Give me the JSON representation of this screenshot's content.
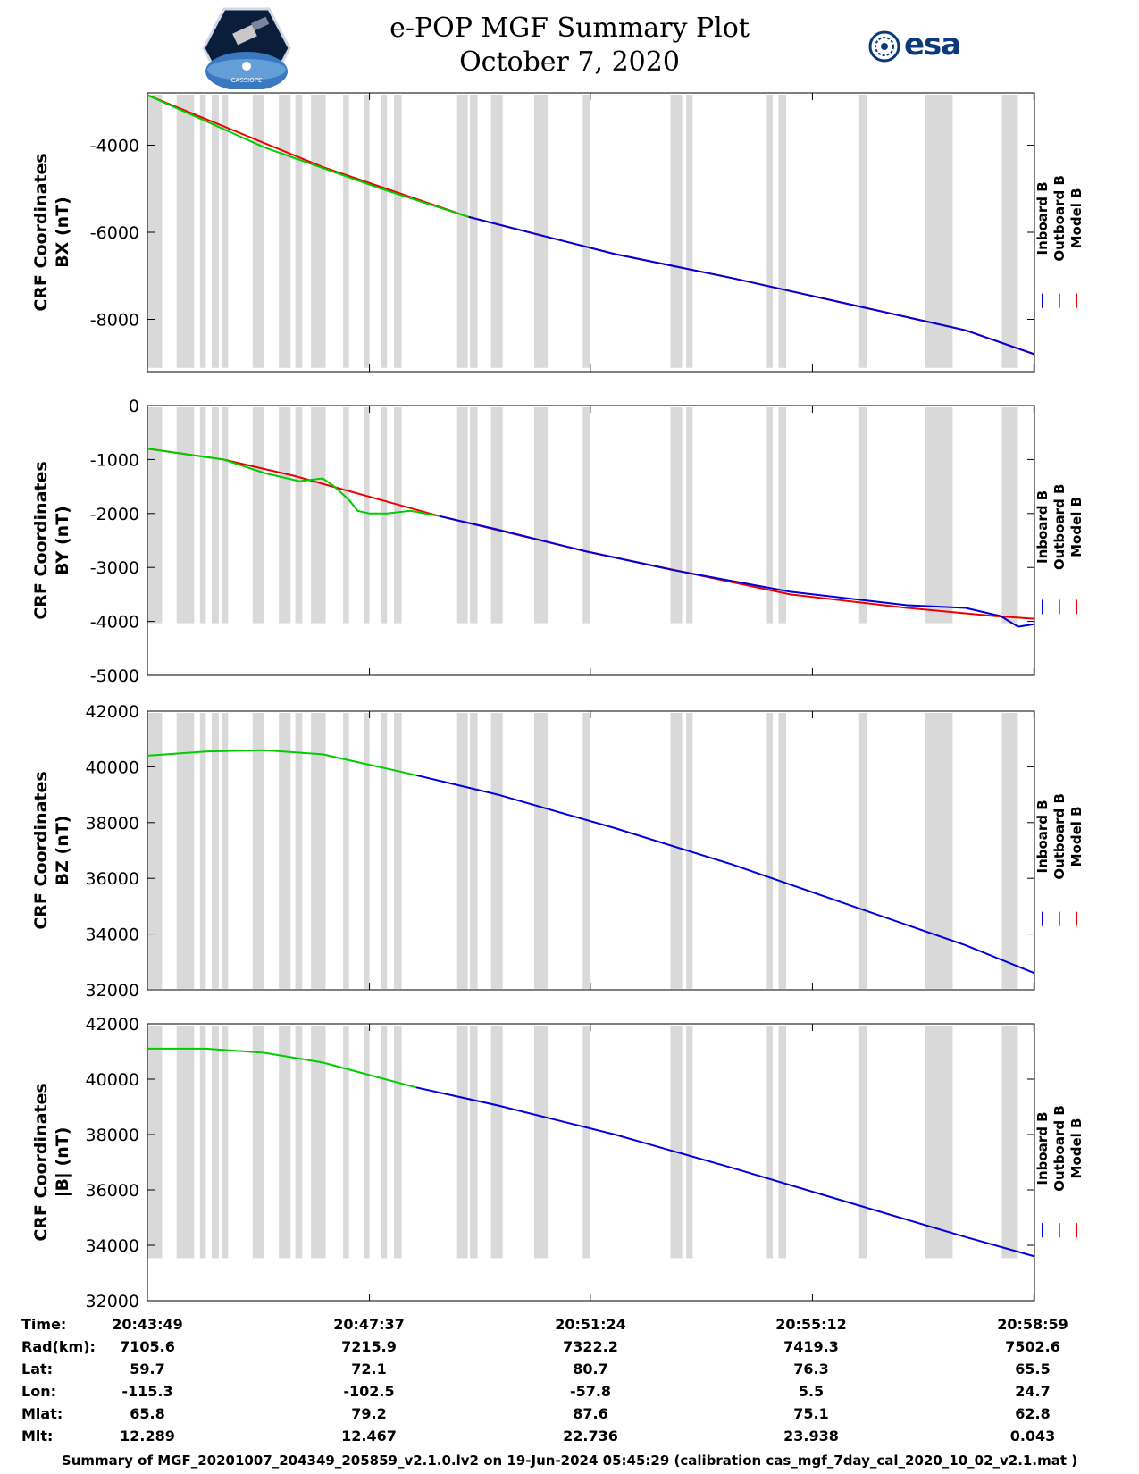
{
  "header": {
    "title_line1": "e-POP MGF Summary Plot",
    "title_line2": "October 7, 2020",
    "logo_left": "cassiope-mission-logo",
    "logo_left_caption": "CASSIOPE",
    "logo_right_text": "esa"
  },
  "colors": {
    "inboard": "#0000dd",
    "outboard": "#00cc00",
    "model": "#ee0000",
    "gap": "#d9d9d9"
  },
  "chart_data": [
    {
      "type": "line",
      "ylabel": "CRF Coordinates",
      "ylabel2": "BX (nT)",
      "ylim": [
        -9200,
        -2800
      ],
      "yticks": [
        -4000,
        -6000,
        -8000
      ],
      "tick_labels": [
        "-4000",
        "-6000",
        "-8000"
      ],
      "legend": [
        "Inboard B",
        "Outboard B",
        "Model B"
      ],
      "series": [
        {
          "name": "Outboard B",
          "x": [
            0,
            2.0,
            4.0,
            5.5
          ],
          "values": [
            -2850,
            -4050,
            -5000,
            -5650
          ]
        },
        {
          "name": "Inboard B",
          "x": [
            5.5,
            8.0,
            10.0,
            12.0,
            14.0,
            15.18
          ],
          "values": [
            -5650,
            -6500,
            -7050,
            -7650,
            -8250,
            -8800
          ]
        },
        {
          "name": "Model B",
          "x": [
            0,
            3.0,
            5.5,
            8.0,
            10.0,
            12.0,
            14.0,
            15.18
          ],
          "values": [
            -2850,
            -4500,
            -5650,
            -6500,
            -7050,
            -7650,
            -8250,
            -8800
          ]
        }
      ]
    },
    {
      "type": "line",
      "ylabel": "CRF Coordinates",
      "ylabel2": "BY (nT)",
      "ylim": [
        -5000,
        0
      ],
      "yticks": [
        0,
        -1000,
        -2000,
        -3000,
        -4000,
        -5000
      ],
      "tick_labels": [
        "0",
        "-1000",
        "-2000",
        "-3000",
        "-4000",
        "-5000"
      ],
      "legend": [
        "Inboard B",
        "Outboard B",
        "Model B"
      ],
      "series": [
        {
          "name": "Outboard B",
          "x": [
            0,
            1.3,
            2.0,
            2.6,
            3.0,
            3.2,
            3.45,
            3.6,
            3.8,
            4.1,
            4.5,
            5.0
          ],
          "values": [
            -800,
            -1000,
            -1250,
            -1400,
            -1350,
            -1500,
            -1750,
            -1950,
            -2000,
            -2000,
            -1950,
            -2050
          ]
        },
        {
          "name": "Inboard B",
          "x": [
            5.0,
            6.0,
            7.5,
            9.0,
            11.0,
            13.0,
            14.0,
            14.6,
            14.9,
            15.18
          ],
          "values": [
            -2050,
            -2300,
            -2700,
            -3050,
            -3450,
            -3700,
            -3750,
            -3900,
            -4100,
            -4050
          ]
        },
        {
          "name": "Model B",
          "x": [
            0,
            1.3,
            2.5,
            4.0,
            5.0,
            7.5,
            11.0,
            13.0,
            14.5,
            15.18
          ],
          "values": [
            -800,
            -1000,
            -1300,
            -1750,
            -2050,
            -2700,
            -3500,
            -3750,
            -3900,
            -3950
          ]
        }
      ]
    },
    {
      "type": "line",
      "ylabel": "CRF Coordinates",
      "ylabel2": "BZ (nT)",
      "ylim": [
        32000,
        42000
      ],
      "yticks": [
        42000,
        40000,
        38000,
        36000,
        34000,
        32000
      ],
      "tick_labels": [
        "42000",
        "40000",
        "38000",
        "36000",
        "34000",
        "32000"
      ],
      "legend": [
        "Inboard B",
        "Outboard B",
        "Model B"
      ],
      "series": [
        {
          "name": "Outboard B",
          "x": [
            0,
            1.0,
            2.0,
            3.0,
            4.6
          ],
          "values": [
            40400,
            40550,
            40600,
            40450,
            39700
          ]
        },
        {
          "name": "Inboard B",
          "x": [
            4.6,
            6.0,
            8.0,
            10.0,
            12.0,
            14.0,
            15.18
          ],
          "values": [
            39700,
            39000,
            37800,
            36500,
            35050,
            33600,
            32600
          ]
        }
      ]
    },
    {
      "type": "line",
      "ylabel": "CRF Coordinates",
      "ylabel2": "|B| (nT)",
      "ylim": [
        32000,
        42000
      ],
      "yticks": [
        42000,
        40000,
        38000,
        36000,
        34000,
        32000
      ],
      "tick_labels": [
        "42000",
        "40000",
        "38000",
        "36000",
        "34000",
        "32000"
      ],
      "legend": [
        "Inboard B",
        "Outboard B",
        "Model B"
      ],
      "series": [
        {
          "name": "Outboard B",
          "x": [
            0,
            1.0,
            2.0,
            3.0,
            4.6
          ],
          "values": [
            41100,
            41100,
            40950,
            40600,
            39700
          ]
        },
        {
          "name": "Inboard B",
          "x": [
            4.6,
            6.0,
            8.0,
            10.0,
            12.0,
            14.0,
            15.18
          ],
          "values": [
            39700,
            39050,
            38000,
            36800,
            35550,
            34300,
            33600
          ]
        }
      ]
    }
  ],
  "gap_intervals_minutes": [
    [
      0,
      0.25
    ],
    [
      0.5,
      0.8
    ],
    [
      0.9,
      1.0
    ],
    [
      1.1,
      1.22
    ],
    [
      1.28,
      1.38
    ],
    [
      1.8,
      2.0
    ],
    [
      2.25,
      2.45
    ],
    [
      2.53,
      2.65
    ],
    [
      2.8,
      3.05
    ],
    [
      3.35,
      3.45
    ],
    [
      3.7,
      3.8
    ],
    [
      4.0,
      4.1
    ],
    [
      4.22,
      4.35
    ],
    [
      5.3,
      5.48
    ],
    [
      5.52,
      5.65
    ],
    [
      5.88,
      6.08
    ],
    [
      6.62,
      6.85
    ],
    [
      7.45,
      7.58
    ],
    [
      8.95,
      9.15
    ],
    [
      9.22,
      9.33
    ],
    [
      10.6,
      10.7
    ],
    [
      10.8,
      10.93
    ],
    [
      12.18,
      12.32
    ],
    [
      13.3,
      13.78
    ],
    [
      14.62,
      14.88
    ]
  ],
  "gap_height_fraction": [
    0.98,
    0.8,
    0.99,
    0.84
  ],
  "time_axis": {
    "xlim_minutes": [
      0,
      15.18
    ],
    "tick_minutes": [
      0,
      3.8,
      7.58,
      11.38,
      15.17
    ]
  },
  "info_table": {
    "labels": [
      "Time:",
      "Rad(km):",
      "Lat:",
      "Lon:",
      "Mlat:",
      "Mlt:"
    ],
    "columns": [
      [
        "20:43:49",
        "7105.6",
        "59.7",
        "-115.3",
        "65.8",
        "12.289"
      ],
      [
        "20:47:37",
        "7215.9",
        "72.1",
        "-102.5",
        "79.2",
        "12.467"
      ],
      [
        "20:51:24",
        "7322.2",
        "80.7",
        "-57.8",
        "87.6",
        "22.736"
      ],
      [
        "20:55:12",
        "7419.3",
        "76.3",
        "5.5",
        "75.1",
        "23.938"
      ],
      [
        "20:58:59",
        "7502.6",
        "65.5",
        "24.7",
        "62.8",
        "0.043"
      ]
    ]
  },
  "footer": {
    "text": "Summary of MGF_20201007_204349_205859_v2.1.0.lv2 on 19-Jun-2024 05:45:29 (calibration cas_mgf_7day_cal_2020_10_02_v2.1.mat )"
  }
}
